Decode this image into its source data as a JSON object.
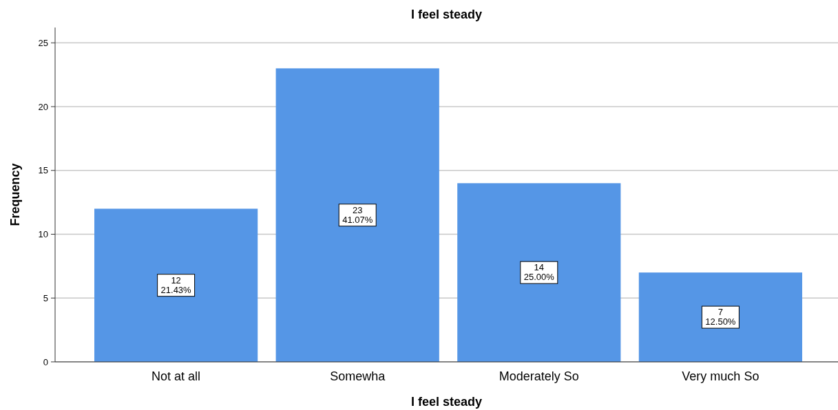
{
  "chart_data": {
    "type": "bar",
    "title": "I feel steady",
    "xlabel": "I feel steady",
    "ylabel": "Frequency",
    "categories": [
      "Not at all",
      "Somewha",
      "Moderately So",
      "Very much So"
    ],
    "values": [
      12,
      23,
      14,
      7
    ],
    "color": "#5596e6",
    "value_labels": [
      "12\n21.43%",
      "23\n41.07%",
      "14\n25.00%",
      "7\n12.50%"
    ],
    "ylim": [
      0,
      26.2
    ],
    "yticks": [
      0,
      5,
      10,
      15,
      20,
      25
    ],
    "grid": "y"
  }
}
